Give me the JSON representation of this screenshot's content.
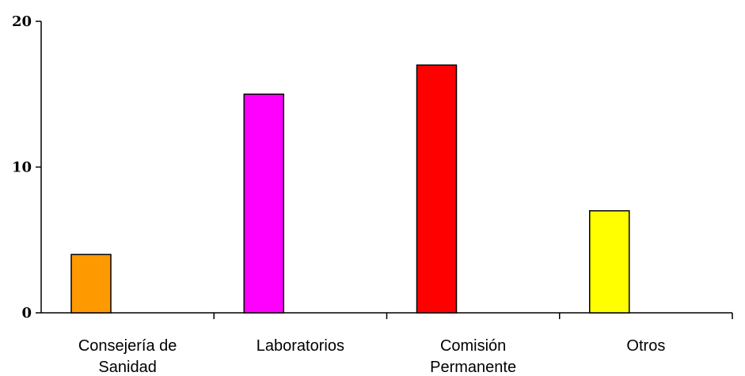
{
  "chart_data": {
    "type": "bar",
    "categories": [
      [
        "Consejería de",
        "Sanidad"
      ],
      [
        "Laboratorios"
      ],
      [
        "Comisión",
        "Permanente"
      ],
      [
        "Otros"
      ]
    ],
    "values": [
      4,
      15,
      17,
      7
    ],
    "colors": [
      "#ff9900",
      "#ff00ff",
      "#ff0000",
      "#ffff00"
    ],
    "ylim": [
      0,
      20
    ],
    "yticks": [
      "0",
      "10",
      "20"
    ],
    "grid": false,
    "title": "",
    "xlabel": "",
    "ylabel": ""
  }
}
